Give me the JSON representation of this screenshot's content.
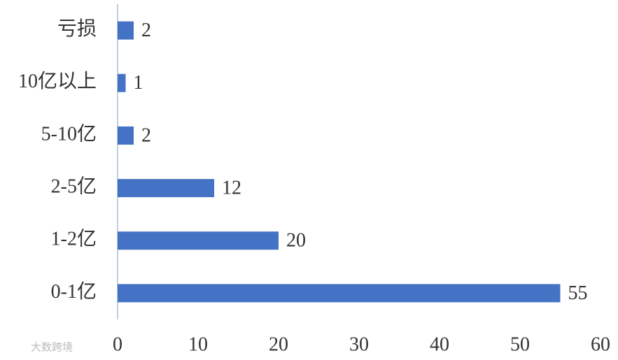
{
  "chart_data": {
    "type": "hbar",
    "categories": [
      "亏损",
      "10亿以上",
      "5-10亿",
      "2-5亿",
      "1-2亿",
      "0-1亿"
    ],
    "values": [
      2,
      1,
      2,
      12,
      20,
      55
    ],
    "color": "#4472c4",
    "xlim": [
      0,
      60
    ],
    "xticks": [
      0,
      10,
      20,
      30,
      40,
      50,
      60
    ],
    "grid": false,
    "watermark": "大数跨境"
  }
}
